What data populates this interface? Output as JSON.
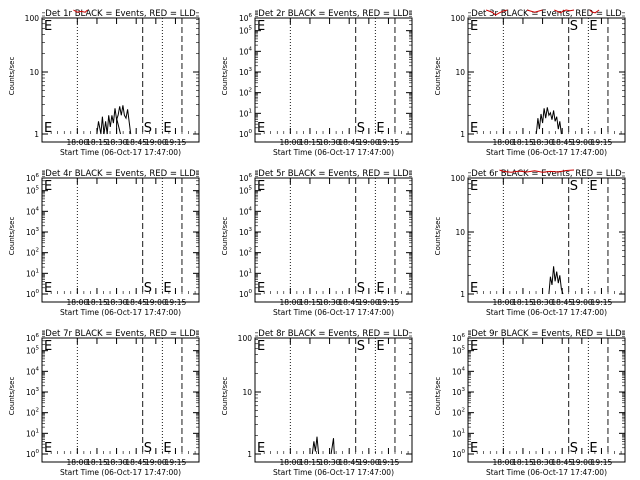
{
  "chart_data": [
    {
      "title": "Det 1r BLACK = Events, RED = LLD",
      "ylabel": "Counts/sec",
      "xlabel": "Start Time (06-Oct-17 17:47:00)",
      "xticks": [
        "18:00",
        "18:15",
        "18:30",
        "18:45",
        "19:00",
        "19:15"
      ],
      "ytick_style": "plain",
      "ylim_log": [
        1,
        100
      ],
      "markers": [
        "S",
        "E"
      ],
      "black_segments": [
        [
          [
            18.5,
            1
          ],
          [
            18.5,
            1.8
          ],
          [
            18.55,
            1
          ]
        ],
        [
          [
            18.25,
            1
          ],
          [
            18.27,
            1.6
          ],
          [
            18.3,
            1
          ],
          [
            18.32,
            1.9
          ],
          [
            18.34,
            1
          ],
          [
            18.36,
            1.6
          ],
          [
            18.38,
            1
          ]
        ],
        [
          [
            18.38,
            1
          ],
          [
            18.4,
            2
          ],
          [
            18.42,
            1.3
          ],
          [
            18.44,
            2
          ],
          [
            18.46,
            1.5
          ],
          [
            18.48,
            2.6
          ],
          [
            18.5,
            1.7
          ],
          [
            18.52,
            2
          ],
          [
            18.54,
            2.8
          ],
          [
            18.56,
            2
          ],
          [
            18.58,
            2.9
          ],
          [
            18.6,
            2
          ],
          [
            18.62,
            1.8
          ],
          [
            18.64,
            2.5
          ],
          [
            18.66,
            1.6
          ],
          [
            18.68,
            1
          ]
        ]
      ],
      "red_segments": [
        [
          [
            17.95,
            100
          ],
          [
            18.0,
            92
          ],
          [
            18.05,
            95
          ],
          [
            18.1,
            92
          ],
          [
            18.13,
            100
          ]
        ]
      ]
    },
    {
      "title": "Det 2r BLACK = Events, RED = LLD",
      "ylabel": "Counts/sec",
      "xlabel": "Start Time (06-Oct-17 17:47:00)",
      "xticks": [
        "18:00",
        "18:15",
        "18:30",
        "18:45",
        "19:00",
        "19:15"
      ],
      "ytick_style": "power",
      "ylim_log": [
        1,
        1000000
      ],
      "markers": [
        "S",
        "E"
      ],
      "black_segments": [],
      "red_segments": []
    },
    {
      "title": "Det 3r BLACK = Events, RED = LLD",
      "ylabel": "Counts/sec",
      "xlabel": "Start Time (06-Oct-17 17:47:00)",
      "xticks": [
        "18:00",
        "18:15",
        "18:30",
        "18:45",
        "19:00",
        "19:15"
      ],
      "ytick_style": "plain",
      "ylim_log": [
        1,
        100
      ],
      "markers": [
        "S",
        "E"
      ],
      "black_segments": [
        [
          [
            18.42,
            1
          ],
          [
            18.44,
            1.8
          ],
          [
            18.46,
            1.2
          ],
          [
            18.48,
            2.1
          ],
          [
            18.5,
            1.5
          ],
          [
            18.52,
            2.6
          ],
          [
            18.54,
            1.8
          ],
          [
            18.56,
            2.7
          ],
          [
            18.58,
            2
          ],
          [
            18.6,
            2.2
          ],
          [
            18.62,
            1.7
          ],
          [
            18.64,
            2.4
          ],
          [
            18.66,
            1.6
          ],
          [
            18.68,
            1.9
          ],
          [
            18.7,
            1.2
          ],
          [
            18.72,
            1.6
          ],
          [
            18.74,
            1
          ]
        ]
      ],
      "red_segments": [
        [
          [
            17.78,
            100
          ],
          [
            17.82,
            96
          ],
          [
            17.86,
            92
          ],
          [
            17.9,
            83
          ],
          [
            17.95,
            90
          ],
          [
            18.0,
            96
          ],
          [
            18.05,
            100
          ]
        ],
        [
          [
            18.3,
            100
          ],
          [
            18.35,
            96
          ],
          [
            18.4,
            92
          ],
          [
            18.45,
            96
          ],
          [
            18.5,
            100
          ]
        ],
        [
          [
            18.65,
            100
          ],
          [
            18.7,
            94
          ],
          [
            18.73,
            90
          ],
          [
            18.76,
            96
          ],
          [
            18.8,
            100
          ],
          [
            18.85,
            97
          ],
          [
            18.9,
            100
          ]
        ],
        [
          [
            19.1,
            100
          ],
          [
            19.13,
            93
          ],
          [
            19.17,
            90
          ],
          [
            19.2,
            96
          ],
          [
            19.22,
            100
          ]
        ]
      ]
    },
    {
      "title": "Det 4r BLACK = Events, RED = LLD",
      "ylabel": "Counts/sec",
      "xlabel": "Start Time (06-Oct-17 17:47:00)",
      "xticks": [
        "18:00",
        "18:15",
        "18:30",
        "18:45",
        "19:00",
        "19:15"
      ],
      "ytick_style": "power",
      "ylim_log": [
        1,
        1000000
      ],
      "markers": [
        "S",
        "E"
      ],
      "black_segments": [],
      "red_segments": []
    },
    {
      "title": "Det 5r BLACK = Events, RED = LLD",
      "ylabel": "Counts/sec",
      "xlabel": "Start Time (06-Oct-17 17:47:00)",
      "xticks": [
        "18:00",
        "18:15",
        "18:30",
        "18:45",
        "19:00",
        "19:15"
      ],
      "ytick_style": "power",
      "ylim_log": [
        1,
        1000000
      ],
      "markers": [
        "S",
        "E"
      ],
      "black_segments": [],
      "red_segments": []
    },
    {
      "title": "Det 6r BLACK = Events, RED = LLD",
      "ylabel": "Counts/sec",
      "xlabel": "Start Time (06-Oct-17 17:47:00)",
      "xticks": [
        "18:00",
        "18:15",
        "18:30",
        "18:45",
        "19:00",
        "19:15"
      ],
      "ytick_style": "plain",
      "ylim_log": [
        1,
        100
      ],
      "markers": [
        "S",
        "E"
      ],
      "black_segments": [
        [
          [
            18.58,
            1
          ],
          [
            18.6,
            1.9
          ],
          [
            18.62,
            1.4
          ],
          [
            18.64,
            2.8
          ],
          [
            18.66,
            1.6
          ],
          [
            18.68,
            2.3
          ],
          [
            18.7,
            1.5
          ],
          [
            18.72,
            2
          ],
          [
            18.74,
            1.2
          ],
          [
            18.76,
            1
          ]
        ]
      ],
      "red_segments": [
        [
          [
            17.95,
            100
          ],
          [
            18.0,
            95
          ],
          [
            18.1,
            92
          ],
          [
            18.2,
            96
          ],
          [
            18.3,
            93
          ],
          [
            18.4,
            97
          ],
          [
            18.5,
            92
          ],
          [
            18.6,
            95
          ],
          [
            18.7,
            93
          ],
          [
            18.8,
            98
          ],
          [
            18.9,
            100
          ]
        ]
      ]
    },
    {
      "title": "Det 7r BLACK = Events, RED = LLD",
      "ylabel": "Counts/sec",
      "xlabel": "Start Time (06-Oct-17 17:47:00)",
      "xticks": [
        "18:00",
        "18:15",
        "18:30",
        "18:45",
        "19:00",
        "19:15"
      ],
      "ytick_style": "power",
      "ylim_log": [
        1,
        1000000
      ],
      "markers": [
        "S",
        "E"
      ],
      "black_segments": [],
      "red_segments": []
    },
    {
      "title": "Det 8r BLACK = Events, RED = LLD",
      "ylabel": "Counts/sec",
      "xlabel": "Start Time (06-Oct-17 17:47:00)",
      "xticks": [
        "18:00",
        "18:15",
        "18:30",
        "18:45",
        "19:00",
        "19:15"
      ],
      "ytick_style": "plain",
      "ylim_log": [
        1,
        100
      ],
      "markers": [
        "S",
        "E"
      ],
      "black_segments": [
        [
          [
            18.28,
            1
          ],
          [
            18.3,
            1.6
          ],
          [
            18.32,
            1.1
          ],
          [
            18.34,
            1.9
          ],
          [
            18.36,
            1
          ]
        ],
        [
          [
            18.52,
            1
          ],
          [
            18.55,
            1.8
          ],
          [
            18.56,
            1
          ]
        ]
      ],
      "red_segments": []
    },
    {
      "title": "Det 9r BLACK = Events, RED = LLD",
      "ylabel": "Counts/sec",
      "xlabel": "Start Time (06-Oct-17 17:47:00)",
      "xticks": [
        "18:00",
        "18:15",
        "18:30",
        "18:45",
        "19:00",
        "19:15"
      ],
      "ytick_style": "power",
      "ylim_log": [
        1,
        1000000
      ],
      "markers": [
        "S",
        "E"
      ],
      "black_segments": [],
      "red_segments": []
    }
  ]
}
